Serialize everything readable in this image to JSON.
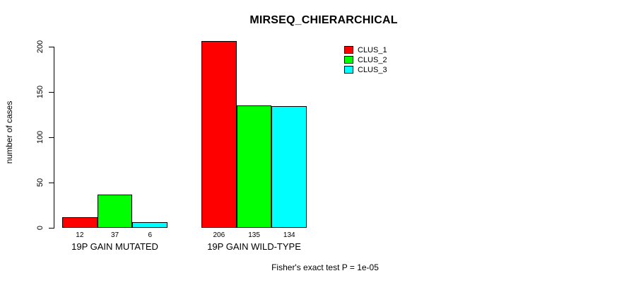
{
  "chart_data": {
    "type": "bar",
    "title": "MIRSEQ_CHIERARCHICAL",
    "xlabel": "",
    "ylabel": "number of cases",
    "categories": [
      "19P GAIN MUTATED",
      "19P GAIN WILD-TYPE"
    ],
    "series": [
      {
        "name": "CLUS_1",
        "color": "#FF0000",
        "values": [
          12,
          206
        ]
      },
      {
        "name": "CLUS_2",
        "color": "#00FF00",
        "values": [
          37,
          135
        ]
      },
      {
        "name": "CLUS_3",
        "color": "#00FFFF",
        "values": [
          6,
          134
        ]
      }
    ],
    "bar_value_labels": [
      [
        12,
        37,
        6
      ],
      [
        206,
        135,
        134
      ]
    ],
    "yticks": [
      0,
      50,
      100,
      150,
      200
    ],
    "ylim": [
      0,
      206
    ],
    "grid": false,
    "legend_position": "top-right",
    "annotation": "Fisher's exact test P = 1e-05"
  }
}
